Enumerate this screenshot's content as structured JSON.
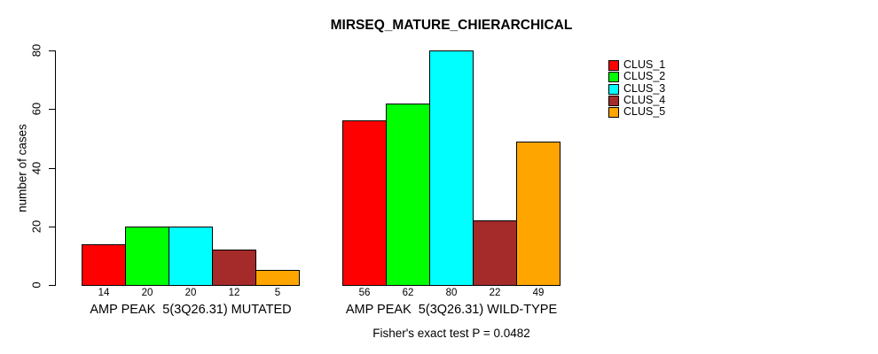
{
  "title": "MIRSEQ_MATURE_CHIERARCHICAL",
  "footer": "Fisher's exact test P = 0.0482",
  "chart_data": {
    "type": "bar",
    "title": "MIRSEQ_MATURE_CHIERARCHICAL",
    "xlabel": "",
    "ylabel": "number of cases",
    "ylim": [
      0,
      80
    ],
    "yticks": [
      0,
      20,
      40,
      60,
      80
    ],
    "grid": false,
    "legend_position": "right",
    "categories": [
      "AMP PEAK  5(3Q26.31) MUTATED",
      "AMP PEAK  5(3Q26.31) WILD-TYPE"
    ],
    "series": [
      {
        "name": "CLUS_1",
        "color": "#FF0000",
        "values": [
          14,
          56
        ]
      },
      {
        "name": "CLUS_2",
        "color": "#00FF00",
        "values": [
          20,
          62
        ]
      },
      {
        "name": "CLUS_3",
        "color": "#00FFFF",
        "values": [
          20,
          80
        ]
      },
      {
        "name": "CLUS_4",
        "color": "#A52A2A",
        "values": [
          12,
          22
        ]
      },
      {
        "name": "CLUS_5",
        "color": "#FFA500",
        "values": [
          5,
          49
        ]
      }
    ],
    "bar_value_labels": [
      [
        14,
        20,
        20,
        12,
        5
      ],
      [
        56,
        62,
        80,
        22,
        49
      ]
    ],
    "annotation": "Fisher's exact test P = 0.0482"
  }
}
